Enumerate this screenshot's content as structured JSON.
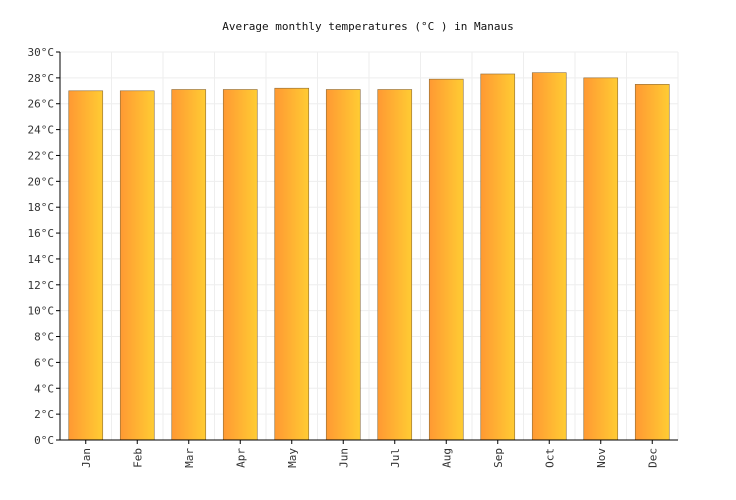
{
  "chart_data": {
    "type": "bar",
    "title": "Average monthly temperatures (°C ) in Manaus",
    "xlabel": "",
    "ylabel": "",
    "categories": [
      "Jan",
      "Feb",
      "Mar",
      "Apr",
      "May",
      "Jun",
      "Jul",
      "Aug",
      "Sep",
      "Oct",
      "Nov",
      "Dec"
    ],
    "values": [
      27.0,
      27.0,
      27.1,
      27.1,
      27.2,
      27.1,
      27.1,
      27.9,
      28.3,
      28.4,
      28.0,
      27.5
    ],
    "ylim": [
      0,
      30
    ],
    "y_ticks": [
      0,
      2,
      4,
      6,
      8,
      10,
      12,
      14,
      16,
      18,
      20,
      22,
      24,
      26,
      28,
      30
    ],
    "y_tick_labels": [
      "0°C",
      "2°C",
      "4°C",
      "6°C",
      "8°C",
      "10°C",
      "12°C",
      "14°C",
      "16°C",
      "18°C",
      "20°C",
      "22°C",
      "24°C",
      "26°C",
      "28°C",
      "30°C"
    ],
    "grid": true,
    "legend": false,
    "colors": {
      "bar_gradient_start": "#ff9933",
      "bar_gradient_end": "#ffcc33",
      "grid": "#eeeeee",
      "axis": "#000000"
    }
  }
}
